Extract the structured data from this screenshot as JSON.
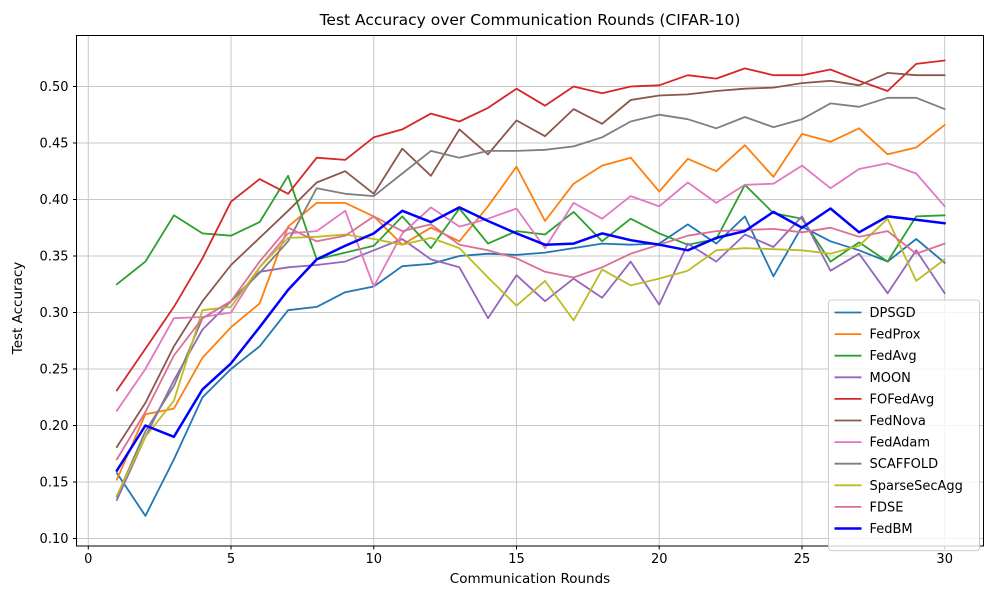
{
  "figure": {
    "type": "matplotlib-line-figure",
    "background": "#ffffff",
    "grid_color": "#c8c8c8",
    "spine_color": "#000000"
  },
  "chart_data": {
    "type": "line",
    "title": "Test Accuracy over Communication Rounds (CIFAR-10)",
    "xlabel": "Communication Rounds",
    "ylabel": "Test Accuracy",
    "grid": true,
    "legend_position": "lower right",
    "xlim": [
      -0.413,
      31.359
    ],
    "ylim": [
      0.0934,
      0.5451
    ],
    "xticks": [
      0,
      5,
      10,
      15,
      20,
      25,
      30
    ],
    "yticks": [
      0.1,
      0.15,
      0.2,
      0.25,
      0.3,
      0.35,
      0.4,
      0.45,
      0.5
    ],
    "x": [
      1,
      2,
      3,
      4,
      5,
      6,
      7,
      8,
      9,
      10,
      11,
      12,
      13,
      14,
      15,
      16,
      17,
      18,
      19,
      20,
      21,
      22,
      23,
      24,
      25,
      26,
      27,
      28,
      29,
      30
    ],
    "series": [
      {
        "name": "DPSGD",
        "color": "#1f77b4",
        "linewidth": 1.8,
        "values": [
          0.158,
          0.12,
          0.17,
          0.225,
          0.25,
          0.27,
          0.302,
          0.305,
          0.318,
          0.323,
          0.341,
          0.343,
          0.35,
          0.352,
          0.351,
          0.353,
          0.357,
          0.361,
          0.36,
          0.361,
          0.378,
          0.361,
          0.385,
          0.332,
          0.376,
          0.363,
          0.355,
          0.345,
          0.365,
          0.344
        ]
      },
      {
        "name": "FedProx",
        "color": "#ff7f0e",
        "linewidth": 1.8,
        "values": [
          0.152,
          0.21,
          0.215,
          0.26,
          0.287,
          0.308,
          0.376,
          0.397,
          0.397,
          0.385,
          0.36,
          0.375,
          0.363,
          0.394,
          0.429,
          0.381,
          0.414,
          0.43,
          0.437,
          0.407,
          0.436,
          0.425,
          0.448,
          0.42,
          0.458,
          0.451,
          0.463,
          0.44,
          0.446,
          0.466
        ]
      },
      {
        "name": "FedAvg",
        "color": "#2ca02c",
        "linewidth": 1.8,
        "values": [
          0.325,
          0.345,
          0.386,
          0.37,
          0.368,
          0.38,
          0.421,
          0.347,
          0.353,
          0.359,
          0.385,
          0.357,
          0.392,
          0.361,
          0.372,
          0.369,
          0.389,
          0.363,
          0.383,
          0.37,
          0.36,
          0.365,
          0.413,
          0.388,
          0.383,
          0.345,
          0.362,
          0.345,
          0.385,
          0.386
        ]
      },
      {
        "name": "MOON",
        "color": "#9467bd",
        "linewidth": 1.8,
        "values": [
          0.134,
          0.19,
          0.24,
          0.285,
          0.31,
          0.336,
          0.34,
          0.342,
          0.345,
          0.355,
          0.365,
          0.347,
          0.34,
          0.295,
          0.333,
          0.31,
          0.33,
          0.313,
          0.345,
          0.307,
          0.361,
          0.345,
          0.369,
          0.358,
          0.385,
          0.337,
          0.352,
          0.317,
          0.355,
          0.317
        ]
      },
      {
        "name": "FOFedAvg",
        "color": "#d62728",
        "linewidth": 1.8,
        "values": [
          0.231,
          0.268,
          0.305,
          0.348,
          0.398,
          0.418,
          0.405,
          0.437,
          0.435,
          0.455,
          0.462,
          0.476,
          0.469,
          0.481,
          0.498,
          0.483,
          0.5,
          0.494,
          0.5,
          0.501,
          0.51,
          0.507,
          0.516,
          0.51,
          0.51,
          0.515,
          0.505,
          0.496,
          0.52,
          0.523
        ]
      },
      {
        "name": "FedNova",
        "color": "#8c564b",
        "linewidth": 1.8,
        "values": [
          0.181,
          0.22,
          0.27,
          0.31,
          0.342,
          0.366,
          0.39,
          0.415,
          0.425,
          0.405,
          0.445,
          0.421,
          0.462,
          0.44,
          0.47,
          0.456,
          0.48,
          0.467,
          0.488,
          0.492,
          0.493,
          0.496,
          0.498,
          0.499,
          0.503,
          0.505,
          0.501,
          0.512,
          0.51,
          0.51
        ]
      },
      {
        "name": "FedAdam",
        "color": "#e377c2",
        "linewidth": 1.8,
        "values": [
          0.213,
          0.25,
          0.295,
          0.296,
          0.3,
          0.34,
          0.37,
          0.372,
          0.39,
          0.323,
          0.37,
          0.393,
          0.376,
          0.383,
          0.392,
          0.357,
          0.397,
          0.383,
          0.403,
          0.394,
          0.415,
          0.397,
          0.413,
          0.414,
          0.43,
          0.41,
          0.427,
          0.432,
          0.423,
          0.394
        ]
      },
      {
        "name": "SCAFFOLD",
        "color": "#7f7f7f",
        "linewidth": 1.8,
        "values": [
          0.137,
          0.195,
          0.235,
          0.295,
          0.31,
          0.335,
          0.363,
          0.41,
          0.405,
          0.403,
          0.423,
          0.443,
          0.437,
          0.443,
          0.443,
          0.444,
          0.447,
          0.455,
          0.469,
          0.475,
          0.471,
          0.463,
          0.473,
          0.464,
          0.471,
          0.485,
          0.482,
          0.49,
          0.49,
          0.48
        ]
      },
      {
        "name": "SparseSecAgg",
        "color": "#bcbd22",
        "linewidth": 1.8,
        "values": [
          0.138,
          0.19,
          0.222,
          0.302,
          0.305,
          0.34,
          0.366,
          0.367,
          0.369,
          0.365,
          0.36,
          0.366,
          0.357,
          0.331,
          0.306,
          0.328,
          0.293,
          0.338,
          0.324,
          0.33,
          0.337,
          0.355,
          0.357,
          0.356,
          0.355,
          0.352,
          0.359,
          0.383,
          0.328,
          0.347
        ]
      },
      {
        "name": "FDSE",
        "color": "#db7093",
        "linewidth": 1.8,
        "values": [
          0.17,
          0.212,
          0.262,
          0.295,
          0.31,
          0.345,
          0.375,
          0.363,
          0.368,
          0.385,
          0.372,
          0.378,
          0.36,
          0.355,
          0.348,
          0.336,
          0.331,
          0.34,
          0.352,
          0.36,
          0.368,
          0.372,
          0.373,
          0.374,
          0.371,
          0.375,
          0.367,
          0.372,
          0.352,
          0.361
        ]
      },
      {
        "name": "FedBM",
        "color": "#0000ff",
        "linewidth": 2.5,
        "values": [
          0.16,
          0.2,
          0.19,
          0.232,
          0.255,
          0.287,
          0.32,
          0.347,
          0.359,
          0.37,
          0.39,
          0.38,
          0.393,
          0.381,
          0.37,
          0.36,
          0.361,
          0.37,
          0.364,
          0.36,
          0.355,
          0.366,
          0.372,
          0.389,
          0.375,
          0.392,
          0.371,
          0.385,
          0.382,
          0.379
        ]
      }
    ]
  }
}
